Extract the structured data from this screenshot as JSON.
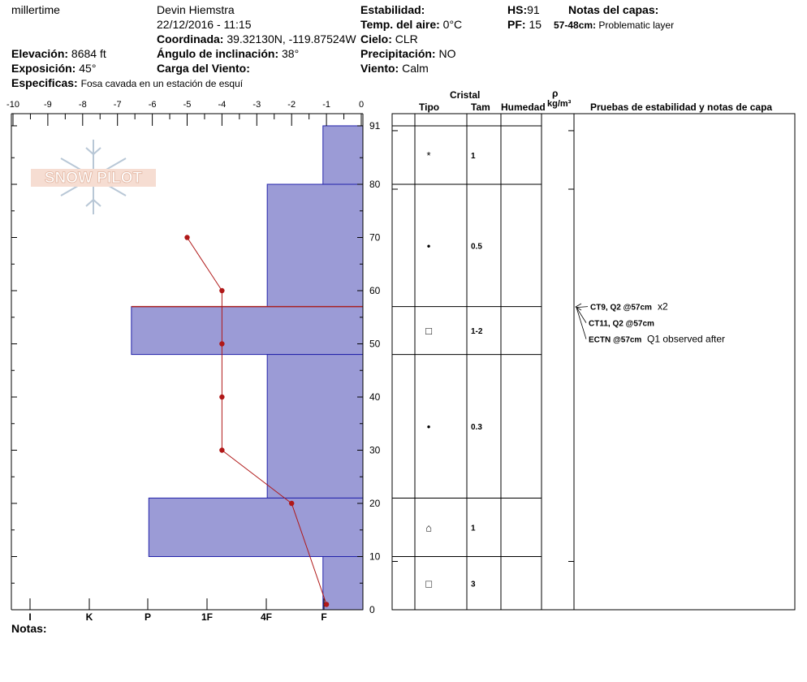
{
  "header": {
    "observer": "millertime",
    "name": "Devin Hiemstra",
    "datetime": "22/12/2016 - 11:15",
    "coord_label": "Coordinada:",
    "coord_value": "39.32130N, -119.87524W",
    "elev_label": "Elevación:",
    "elev_value": "8684 ft",
    "exp_label": "Exposición:",
    "exp_value": "45°",
    "spec_label": "Especificas:",
    "spec_value": "Fosa cavada en un estación de esquí",
    "angle_label": "Ángulo de inclinación:",
    "angle_value": "38°",
    "wind_load_label": "Carga del Viento:",
    "stab_label": "Estabilidad:",
    "airtemp_label": "Temp. del aire:",
    "airtemp_value": "0°C",
    "sky_label": "Cielo:",
    "sky_value": "CLR",
    "precip_label": "Precipitación:",
    "precip_value": "NO",
    "wind_label": "Viento:",
    "wind_value": "Calm",
    "hs_label": "HS:",
    "hs_value": "91",
    "pf_label": "PF:",
    "pf_value": "15",
    "notes_layers_label": "Notas del capas:",
    "layer_note_range": "57-48cm:",
    "layer_note_text": "Problematic layer"
  },
  "columns": {
    "cristal": "Cristal",
    "tipo": "Tipo",
    "tam": "Tam",
    "humedad": "Humedad",
    "rho": "ρ",
    "rho_unit": "kg/m³",
    "pruebas": "Pruebas de estabilidad y notas de capa"
  },
  "footer": {
    "notas_label": "Notas:"
  },
  "watermark": "SNOW PILOT",
  "chart_data": {
    "type": "snow_profile",
    "temp_axis": {
      "ticks": [
        "-10",
        "-9",
        "-8",
        "-7",
        "-6",
        "-5",
        "-4",
        "-3",
        "-2",
        "-1",
        "0"
      ],
      "range": [
        -10,
        0
      ]
    },
    "hardness_axis": {
      "labels": [
        "I",
        "K",
        "P",
        "1F",
        "4F",
        "F"
      ]
    },
    "depth_axis": {
      "range": [
        0,
        91
      ],
      "ticks": [
        "0",
        "10",
        "20",
        "30",
        "40",
        "50",
        "60",
        "70",
        "80",
        "91"
      ]
    },
    "hardness_bars": [
      {
        "bottom": 80,
        "top": 91,
        "temp_value": -1.1
      },
      {
        "bottom": 57,
        "top": 80,
        "temp_value": -2.7
      },
      {
        "bottom": 48,
        "top": 57,
        "temp_value": -6.6
      },
      {
        "bottom": 21,
        "top": 48,
        "temp_value": -2.7
      },
      {
        "bottom": 10,
        "top": 21,
        "temp_value": -6.1
      },
      {
        "bottom": 0,
        "top": 10,
        "temp_value": -1.1
      }
    ],
    "temperature_profile": [
      {
        "depth": 70,
        "temp": -5
      },
      {
        "depth": 60,
        "temp": -4
      },
      {
        "depth": 50,
        "temp": -4
      },
      {
        "depth": 40,
        "temp": -4
      },
      {
        "depth": 30,
        "temp": -4
      },
      {
        "depth": 20,
        "temp": -2
      },
      {
        "depth": 1,
        "temp": -1
      }
    ],
    "problem_layer_depth": 57,
    "layers": [
      {
        "bottom": 80,
        "top": 91,
        "type": "*",
        "size": "1"
      },
      {
        "bottom": 57,
        "top": 80,
        "type": "•",
        "size": "0.5"
      },
      {
        "bottom": 48,
        "top": 57,
        "type": "□",
        "size": "1-2"
      },
      {
        "bottom": 21,
        "top": 48,
        "type": "•",
        "size": "0.3"
      },
      {
        "bottom": 10,
        "top": 21,
        "type": "⌂",
        "size": "1"
      },
      {
        "bottom": 0,
        "top": 10,
        "type": "□",
        "size": "3"
      }
    ],
    "tests": [
      {
        "code": "CT9, Q2 @57cm",
        "note": "x2"
      },
      {
        "code": "CT11, Q2 @57cm",
        "note": ""
      },
      {
        "code": "ECTN @57cm",
        "note": "Q1 observed after"
      }
    ]
  }
}
